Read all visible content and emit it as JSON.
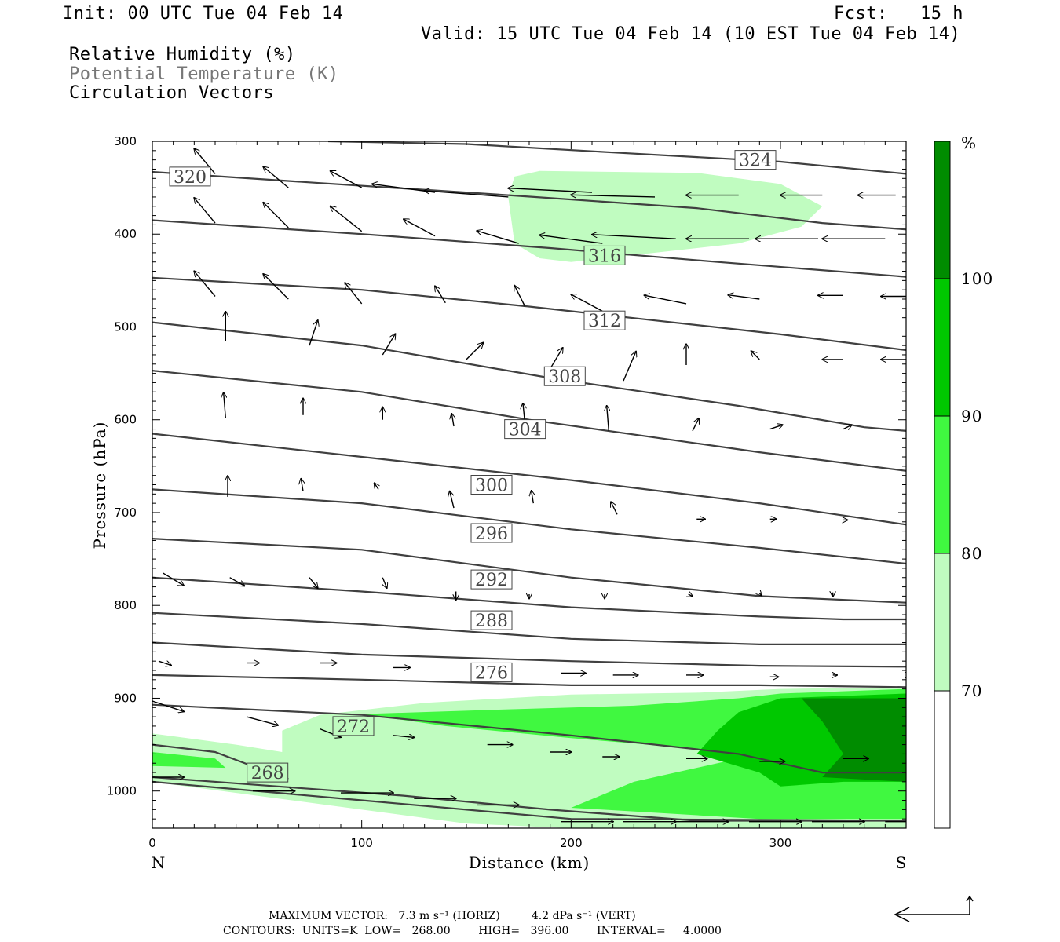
{
  "header": {
    "init": "Init: 00 UTC Tue 04 Feb 14",
    "fcst": "Fcst:   15 h",
    "valid": "Valid: 15 UTC Tue 04 Feb 14 (10 EST Tue 04 Feb 14)",
    "field1": "Relative Humidity (%)",
    "field2": "Potential Temperature (K)",
    "field3": "Circulation Vectors"
  },
  "colors": {
    "rh70": "#c0fcc0",
    "rh80": "#40f840",
    "rh90": "#00c800",
    "rh100": "#008c00",
    "theta_line": "#404040",
    "vector": "#000000"
  },
  "chart_data": {
    "type": "cross-section",
    "xlabel": "Distance (km)",
    "ylabel": "Pressure (hPa)",
    "xlim": [
      0,
      360
    ],
    "ylim": [
      1040,
      300
    ],
    "xticks": [
      "0",
      "100",
      "200",
      "300"
    ],
    "yticks": [
      "300",
      "400",
      "500",
      "600",
      "700",
      "800",
      "900",
      "1000"
    ],
    "left_end_label": "N",
    "right_end_label": "S",
    "colorbar": {
      "unit": "%",
      "levels": [
        "70",
        "80",
        "90",
        "100"
      ]
    },
    "theta_contours": [
      {
        "value": 324,
        "label": "324",
        "points": [
          [
            84,
            300
          ],
          [
            150,
            303
          ],
          [
            220,
            312
          ],
          [
            300,
            322
          ],
          [
            360,
            335
          ]
        ],
        "label_at": [
          288,
          320
        ]
      },
      {
        "value": 320,
        "label": "320",
        "points": [
          [
            0,
            333
          ],
          [
            80,
            345
          ],
          [
            170,
            358
          ],
          [
            260,
            372
          ],
          [
            320,
            388
          ],
          [
            360,
            395
          ]
        ],
        "label_at": [
          18,
          338
        ]
      },
      {
        "value": 316,
        "label": "316",
        "points": [
          [
            0,
            385
          ],
          [
            100,
            400
          ],
          [
            190,
            415
          ],
          [
            270,
            430
          ],
          [
            360,
            446
          ]
        ],
        "label_at": [
          216,
          423
        ]
      },
      {
        "value": 312,
        "label": "312",
        "points": [
          [
            0,
            447
          ],
          [
            100,
            460
          ],
          [
            180,
            478
          ],
          [
            240,
            493
          ],
          [
            300,
            508
          ],
          [
            360,
            525
          ]
        ],
        "label_at": [
          216,
          493
        ]
      },
      {
        "value": 308,
        "label": "308",
        "points": [
          [
            0,
            495
          ],
          [
            100,
            520
          ],
          [
            190,
            555
          ],
          [
            280,
            585
          ],
          [
            340,
            608
          ],
          [
            360,
            612
          ]
        ],
        "label_at": [
          197,
          553
        ]
      },
      {
        "value": 304,
        "label": "304",
        "points": [
          [
            0,
            547
          ],
          [
            100,
            570
          ],
          [
            180,
            600
          ],
          [
            290,
            635
          ],
          [
            360,
            655
          ]
        ],
        "label_at": [
          178,
          610
        ]
      },
      {
        "value": 300,
        "label": "300",
        "points": [
          [
            0,
            615
          ],
          [
            100,
            640
          ],
          [
            200,
            665
          ],
          [
            290,
            690
          ],
          [
            360,
            713
          ]
        ],
        "label_at": [
          162,
          670
        ]
      },
      {
        "value": 296,
        "label": "296",
        "points": [
          [
            0,
            675
          ],
          [
            100,
            690
          ],
          [
            200,
            718
          ],
          [
            290,
            738
          ],
          [
            360,
            755
          ]
        ],
        "label_at": [
          162,
          722
        ]
      },
      {
        "value": 292,
        "label": "292",
        "points": [
          [
            0,
            728
          ],
          [
            100,
            740
          ],
          [
            200,
            770
          ],
          [
            290,
            790
          ],
          [
            360,
            797
          ]
        ],
        "label_at": [
          162,
          772
        ]
      },
      {
        "value": 288,
        "label": "288",
        "points": [
          [
            0,
            770
          ],
          [
            100,
            785
          ],
          [
            200,
            802
          ],
          [
            290,
            812
          ],
          [
            330,
            815
          ],
          [
            360,
            815
          ]
        ],
        "label_at": [
          162,
          816
        ]
      },
      {
        "value": 284,
        "label": "",
        "points": [
          [
            0,
            808
          ],
          [
            100,
            820
          ],
          [
            200,
            836
          ],
          [
            290,
            842
          ],
          [
            360,
            842
          ]
        ]
      },
      {
        "value": 280,
        "label": "",
        "points": [
          [
            0,
            840
          ],
          [
            100,
            853
          ],
          [
            200,
            860
          ],
          [
            290,
            865
          ],
          [
            360,
            866
          ]
        ]
      },
      {
        "value": 276,
        "label": "",
        "points": [
          [
            0,
            875
          ],
          [
            100,
            880
          ],
          [
            200,
            886
          ],
          [
            290,
            886
          ],
          [
            360,
            888
          ]
        ],
        "label_at": [
          162,
          872
        ]
      },
      {
        "value": 272,
        "label": "272",
        "points": [
          [
            0,
            907
          ],
          [
            100,
            918
          ],
          [
            200,
            940
          ],
          [
            280,
            960
          ],
          [
            320,
            980
          ],
          [
            360,
            980
          ]
        ],
        "label_at": [
          96,
          930
        ]
      },
      {
        "value": 268,
        "label": "268",
        "points": [
          [
            0,
            950
          ],
          [
            30,
            958
          ],
          [
            50,
            975
          ],
          [
            65,
            987
          ]
        ],
        "label_at": [
          55,
          980
        ]
      },
      {
        "value": 264,
        "label": "",
        "points": [
          [
            0,
            985
          ],
          [
            60,
            995
          ],
          [
            120,
            1005
          ],
          [
            190,
            1020
          ],
          [
            260,
            1032
          ],
          [
            360,
            1032
          ]
        ]
      },
      {
        "value": 260,
        "label": "",
        "points": [
          [
            0,
            990
          ],
          [
            100,
            1010
          ],
          [
            200,
            1030
          ],
          [
            360,
            1032
          ]
        ]
      }
    ],
    "rh_regions": [
      {
        "level": 70,
        "points": [
          [
            173,
            338
          ],
          [
            185,
            332
          ],
          [
            260,
            334
          ],
          [
            300,
            346
          ],
          [
            320,
            370
          ],
          [
            310,
            392
          ],
          [
            280,
            410
          ],
          [
            200,
            430
          ],
          [
            185,
            426
          ],
          [
            173,
            410
          ],
          [
            170,
            360
          ]
        ]
      },
      {
        "level": 70,
        "points": [
          [
            0,
            938
          ],
          [
            40,
            950
          ],
          [
            62,
            958
          ],
          [
            62,
            935
          ],
          [
            80,
            918
          ],
          [
            130,
            905
          ],
          [
            200,
            896
          ],
          [
            260,
            894
          ],
          [
            300,
            890
          ],
          [
            360,
            888
          ],
          [
            360,
            1040
          ],
          [
            200,
            1040
          ],
          [
            150,
            1035
          ],
          [
            0,
            990
          ]
        ]
      },
      {
        "level": 80,
        "points": [
          [
            0,
            958
          ],
          [
            30,
            965
          ],
          [
            35,
            975
          ],
          [
            0,
            973
          ]
        ]
      },
      {
        "level": 80,
        "points": [
          [
            100,
            917
          ],
          [
            170,
            912
          ],
          [
            230,
            908
          ],
          [
            280,
            900
          ],
          [
            300,
            895
          ],
          [
            360,
            890
          ],
          [
            360,
            1030
          ],
          [
            290,
            1030
          ],
          [
            200,
            1018
          ],
          [
            230,
            990
          ],
          [
            290,
            960
          ],
          [
            200,
            943
          ],
          [
            140,
            930
          ]
        ]
      },
      {
        "level": 90,
        "points": [
          [
            280,
            915
          ],
          [
            300,
            900
          ],
          [
            360,
            895
          ],
          [
            360,
            990
          ],
          [
            330,
            990
          ],
          [
            300,
            995
          ],
          [
            290,
            980
          ],
          [
            260,
            960
          ],
          [
            270,
            935
          ]
        ]
      },
      {
        "level": 100,
        "points": [
          [
            310,
            900
          ],
          [
            360,
            900
          ],
          [
            360,
            990
          ],
          [
            320,
            985
          ],
          [
            330,
            960
          ],
          [
            320,
            925
          ]
        ]
      }
    ],
    "vectors": [
      [
        30,
        335,
        -10,
        -12
      ],
      [
        65,
        350,
        -12,
        -10
      ],
      [
        100,
        350,
        -15,
        -8
      ],
      [
        135,
        355,
        -30,
        -4
      ],
      [
        170,
        360,
        -40,
        -3
      ],
      [
        210,
        355,
        -40,
        -2
      ],
      [
        240,
        360,
        -40,
        -1
      ],
      [
        280,
        358,
        -25,
        0
      ],
      [
        320,
        358,
        -20,
        0
      ],
      [
        355,
        358,
        -18,
        0
      ],
      [
        30,
        388,
        -10,
        -12
      ],
      [
        65,
        393,
        -12,
        -12
      ],
      [
        100,
        397,
        -15,
        -12
      ],
      [
        135,
        402,
        -15,
        -8
      ],
      [
        175,
        410,
        -20,
        -6
      ],
      [
        215,
        410,
        -30,
        -4
      ],
      [
        250,
        405,
        -40,
        -2
      ],
      [
        285,
        405,
        -30,
        0
      ],
      [
        318,
        405,
        -30,
        0
      ],
      [
        350,
        405,
        -30,
        0
      ],
      [
        30,
        467,
        -10,
        -12
      ],
      [
        65,
        470,
        -12,
        -12
      ],
      [
        100,
        475,
        -8,
        -10
      ],
      [
        140,
        474,
        -5,
        -8
      ],
      [
        178,
        478,
        -5,
        -10
      ],
      [
        215,
        483,
        -15,
        -8
      ],
      [
        255,
        475,
        -20,
        -4
      ],
      [
        290,
        470,
        -15,
        -2
      ],
      [
        330,
        466,
        -12,
        0
      ],
      [
        360,
        467,
        -12,
        0
      ],
      [
        35,
        515,
        0,
        -14
      ],
      [
        75,
        520,
        4,
        -12
      ],
      [
        110,
        530,
        6,
        -10
      ],
      [
        150,
        535,
        8,
        -8
      ],
      [
        190,
        545,
        6,
        -10
      ],
      [
        225,
        558,
        6,
        -14
      ],
      [
        255,
        541,
        0,
        -10
      ],
      [
        290,
        535,
        -4,
        -4
      ],
      [
        330,
        535,
        -10,
        0
      ],
      [
        360,
        535,
        -12,
        0
      ],
      [
        35,
        598,
        -1,
        -12
      ],
      [
        72,
        595,
        0,
        -8
      ],
      [
        110,
        600,
        0,
        -6
      ],
      [
        144,
        607,
        -1,
        -6
      ],
      [
        178,
        605,
        -1,
        -10
      ],
      [
        218,
        612,
        -1,
        -12
      ],
      [
        258,
        612,
        3,
        -6
      ],
      [
        295,
        610,
        6,
        -2
      ],
      [
        330,
        610,
        4,
        -2
      ],
      [
        36,
        683,
        0,
        -10
      ],
      [
        72,
        677,
        -1,
        -6
      ],
      [
        108,
        675,
        -2,
        -3
      ],
      [
        144,
        695,
        -2,
        -8
      ],
      [
        182,
        690,
        -1,
        -6
      ],
      [
        222,
        702,
        -3,
        -6
      ],
      [
        260,
        707,
        4,
        0
      ],
      [
        295,
        707,
        3,
        0
      ],
      [
        330,
        708,
        2,
        0
      ],
      [
        5,
        765,
        10,
        6
      ],
      [
        37,
        770,
        7,
        4
      ],
      [
        75,
        770,
        4,
        5
      ],
      [
        110,
        770,
        2,
        5
      ],
      [
        145,
        785,
        0,
        4
      ],
      [
        180,
        788,
        0,
        2
      ],
      [
        216,
        788,
        0,
        2
      ],
      [
        256,
        788,
        2,
        1
      ],
      [
        290,
        787,
        1,
        1
      ],
      [
        325,
        786,
        0,
        2
      ],
      [
        3,
        860,
        6,
        2
      ],
      [
        45,
        862,
        6,
        0
      ],
      [
        80,
        862,
        8,
        0
      ],
      [
        115,
        867,
        8,
        0
      ],
      [
        155,
        873,
        12,
        0
      ],
      [
        195,
        873,
        12,
        0
      ],
      [
        220,
        875,
        12,
        0
      ],
      [
        255,
        875,
        8,
        0
      ],
      [
        295,
        877,
        4,
        0
      ],
      [
        325,
        875,
        2,
        0
      ],
      [
        360,
        875,
        2,
        0
      ],
      [
        0,
        903,
        15,
        5
      ],
      [
        45,
        920,
        15,
        4
      ],
      [
        80,
        933,
        10,
        4
      ],
      [
        115,
        940,
        10,
        1
      ],
      [
        160,
        950,
        12,
        0
      ],
      [
        190,
        958,
        10,
        0
      ],
      [
        215,
        963,
        8,
        0
      ],
      [
        255,
        965,
        10,
        0
      ],
      [
        290,
        968,
        12,
        0
      ],
      [
        330,
        965,
        12,
        0
      ],
      [
        0,
        985,
        15,
        0
      ],
      [
        48,
        1000,
        20,
        0
      ],
      [
        90,
        1002,
        25,
        0
      ],
      [
        125,
        1008,
        20,
        0
      ],
      [
        155,
        1015,
        20,
        0
      ],
      [
        195,
        1033,
        25,
        0
      ],
      [
        225,
        1033,
        25,
        0
      ],
      [
        250,
        1033,
        25,
        0
      ],
      [
        285,
        1033,
        25,
        0
      ],
      [
        315,
        1033,
        25,
        0
      ],
      [
        350,
        1033,
        25,
        0
      ]
    ],
    "footer_line1": "MAXIMUM VECTOR:   7.3 m s⁻¹ (HORIZ)         4.2 dPa s⁻¹ (VERT)",
    "footer_line2": "CONTOURS:  UNITS=K  LOW=   268.00        HIGH=   396.00        INTERVAL=     4.0000"
  }
}
